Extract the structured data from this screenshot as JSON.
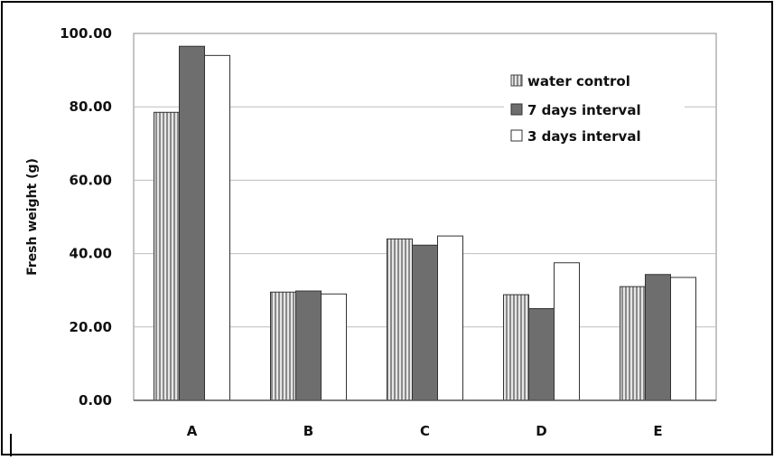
{
  "chart_data": {
    "type": "bar",
    "title": "",
    "xlabel": "",
    "ylabel": "Fresh weight (g)",
    "categories": [
      "A",
      "B",
      "C",
      "D",
      "E"
    ],
    "ylim": [
      0,
      100
    ],
    "yticks": [
      "0.00",
      "20.00",
      "40.00",
      "60.00",
      "80.00",
      "100.00"
    ],
    "grid": "horizontal",
    "legend_position": "top-right inside plot",
    "series": [
      {
        "name": "water control",
        "values": [
          78.5,
          29.5,
          44.0,
          28.8,
          31.0
        ],
        "fill": "vertical-stripes",
        "color": "#b8b8b8"
      },
      {
        "name": "7 days interval",
        "values": [
          96.5,
          29.8,
          42.3,
          25.0,
          34.3
        ],
        "fill": "solid",
        "color": "#6e6e6e"
      },
      {
        "name": "3 days interval",
        "values": [
          94.0,
          29.0,
          44.8,
          37.5,
          33.5
        ],
        "fill": "solid",
        "color": "#ffffff"
      }
    ]
  }
}
